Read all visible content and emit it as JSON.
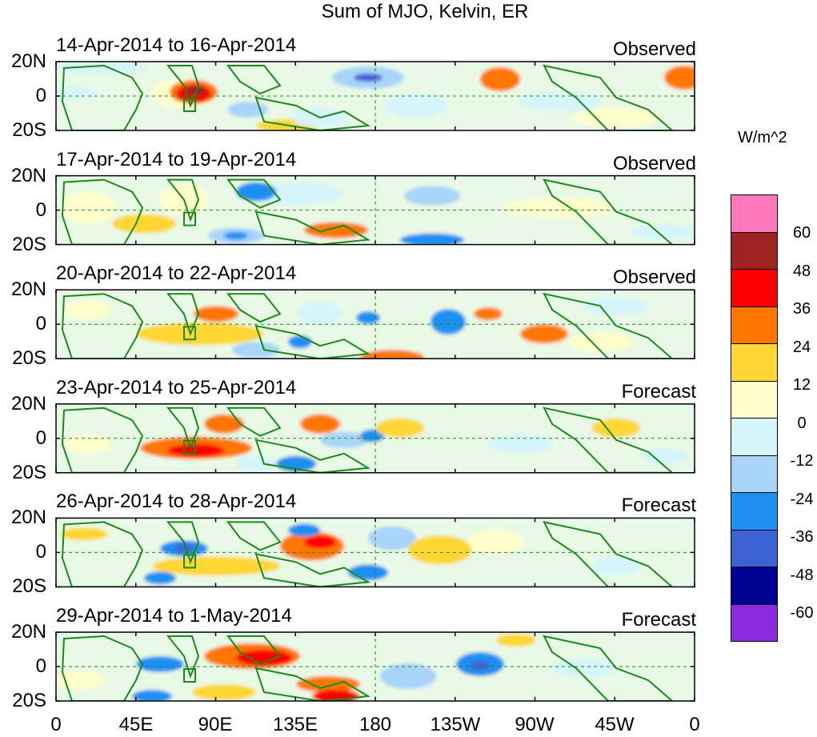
{
  "title": "Sum of MJO, Kelvin, ER",
  "units": "W/m^2",
  "lat_labels": [
    "20N",
    "0",
    "20S"
  ],
  "lon_labels": [
    "0",
    "45E",
    "90E",
    "135E",
    "180",
    "135W",
    "90W",
    "45W",
    "0"
  ],
  "panels": [
    {
      "date": "14-Apr-2014 to 16-Apr-2014",
      "type": "Observed"
    },
    {
      "date": "17-Apr-2014 to 19-Apr-2014",
      "type": "Observed"
    },
    {
      "date": "20-Apr-2014 to 22-Apr-2014",
      "type": "Observed"
    },
    {
      "date": "23-Apr-2014 to 25-Apr-2014",
      "type": "Forecast"
    },
    {
      "date": "26-Apr-2014 to 28-Apr-2014",
      "type": "Forecast"
    },
    {
      "date": "29-Apr-2014 to 1-May-2014",
      "type": "Forecast"
    }
  ],
  "colorbar": {
    "labels": [
      "60",
      "48",
      "36",
      "24",
      "12",
      "0",
      "-12",
      "-24",
      "-36",
      "-48",
      "-60"
    ],
    "colors": [
      "#ff77bb",
      "#9e2323",
      "#ff0000",
      "#ff7700",
      "#ffd633",
      "#ffffcc",
      "#d6f5fa",
      "#a8d4fa",
      "#1f8ff2",
      "#3d63d6",
      "#000090",
      "#8a2be2"
    ]
  }
}
